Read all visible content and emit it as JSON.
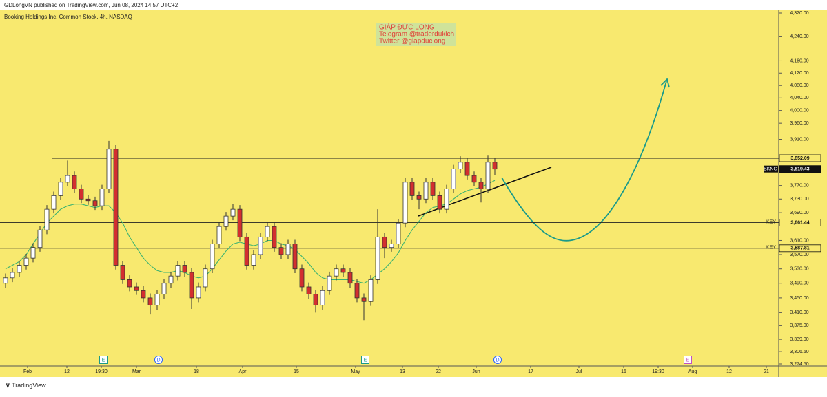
{
  "header": "GDLongVN published on TradingView.com, Jun 08, 2024 14:57 UTC+2",
  "footer": "TradingView",
  "chart_data": {
    "type": "candlestick",
    "title": "Booking Holdings Inc. Common Stock, 4h, NASDAQ",
    "watermark": [
      "GIÁP ĐỨC LONG",
      "Telegram @traderdukich",
      "Twitter @giapduclong"
    ],
    "log_scale": true,
    "grid": false,
    "up_color": "#ffffff",
    "down_color": "#d32f2f",
    "ma_color": "#3cb371",
    "ylim": [
      3274.5,
      4320
    ],
    "yticks": [
      {
        "value": 4320,
        "label": "4,320.00"
      },
      {
        "value": 4240,
        "label": "4,240.00"
      },
      {
        "value": 4160,
        "label": "4,160.00"
      },
      {
        "value": 4120,
        "label": "4,120.00"
      },
      {
        "value": 4080,
        "label": "4,080.00"
      },
      {
        "value": 4040,
        "label": "4,040.00"
      },
      {
        "value": 4000,
        "label": "4,000.00"
      },
      {
        "value": 3960,
        "label": "3,960.00"
      },
      {
        "value": 3910,
        "label": "3,910.00"
      },
      {
        "value": 3770,
        "label": "3,770.00"
      },
      {
        "value": 3730,
        "label": "3,730.00"
      },
      {
        "value": 3690,
        "label": "3,690.00"
      },
      {
        "value": 3610,
        "label": "3,610.00"
      },
      {
        "value": 3570,
        "label": "3,570.00"
      },
      {
        "value": 3530,
        "label": "3,530.00"
      },
      {
        "value": 3490,
        "label": "3,490.00"
      },
      {
        "value": 3450,
        "label": "3,450.00"
      },
      {
        "value": 3410,
        "label": "3,410.00"
      },
      {
        "value": 3375,
        "label": "3,375.00"
      },
      {
        "value": 3339,
        "label": "3,339.00"
      },
      {
        "value": 3306.5,
        "label": "3,306.50"
      },
      {
        "value": 3274.5,
        "label": "3,274.50"
      }
    ],
    "xlim": [
      -0.8,
      112.2
    ],
    "xticks": [
      {
        "value": 3.2,
        "label": "Feb"
      },
      {
        "value": 8.9,
        "label": "12"
      },
      {
        "value": 13.9,
        "label": "19:30"
      },
      {
        "value": 19,
        "label": "Mar"
      },
      {
        "value": 27.7,
        "label": "18"
      },
      {
        "value": 34.4,
        "label": "Apr"
      },
      {
        "value": 42.2,
        "label": "15"
      },
      {
        "value": 50.8,
        "label": "May"
      },
      {
        "value": 57.6,
        "label": "13"
      },
      {
        "value": 62.8,
        "label": "22"
      },
      {
        "value": 68.3,
        "label": "Jun"
      },
      {
        "value": 76.2,
        "label": "17"
      },
      {
        "value": 83.2,
        "label": "Jul"
      },
      {
        "value": 89.7,
        "label": "15"
      },
      {
        "value": 94.7,
        "label": "19:30"
      },
      {
        "value": 99.7,
        "label": "Aug"
      },
      {
        "value": 105,
        "label": "12"
      },
      {
        "value": 110.4,
        "label": "21"
      }
    ],
    "open": [
      3490,
      3505,
      3520,
      3540,
      3560,
      3590,
      3640,
      3700,
      3740,
      3780,
      3800,
      3760,
      3730,
      3725,
      3710,
      3760,
      3880,
      3540,
      3500,
      3480,
      3470,
      3450,
      3430,
      3460,
      3490,
      3510,
      3540,
      3520,
      3450,
      3480,
      3530,
      3600,
      3650,
      3680,
      3700,
      3620,
      3540,
      3570,
      3620,
      3650,
      3590,
      3570,
      3600,
      3530,
      3480,
      3460,
      3430,
      3470,
      3510,
      3530,
      3520,
      3490,
      3450,
      3440,
      3500,
      3620,
      3590,
      3600,
      3660,
      3780,
      3740,
      3730,
      3780,
      3740,
      3700,
      3760,
      3820,
      3840,
      3800,
      3780,
      3760,
      3840
    ],
    "high": [
      3517,
      3532,
      3552,
      3572,
      3602,
      3652,
      3712,
      3752,
      3792,
      3845,
      3812,
      3772,
      3742,
      3737,
      3772,
      3905,
      3892,
      3552,
      3512,
      3492,
      3482,
      3462,
      3472,
      3502,
      3522,
      3552,
      3552,
      3532,
      3492,
      3542,
      3612,
      3662,
      3692,
      3715,
      3712,
      3632,
      3582,
      3632,
      3662,
      3662,
      3602,
      3612,
      3612,
      3542,
      3492,
      3472,
      3482,
      3522,
      3542,
      3542,
      3532,
      3502,
      3462,
      3512,
      3700,
      3632,
      3612,
      3672,
      3792,
      3792,
      3752,
      3792,
      3792,
      3752,
      3772,
      3832,
      3858,
      3852,
      3812,
      3792,
      3860,
      3852
    ],
    "low": [
      3478,
      3493,
      3508,
      3528,
      3548,
      3578,
      3628,
      3688,
      3728,
      3768,
      3748,
      3718,
      3713,
      3698,
      3698,
      3748,
      3528,
      3488,
      3468,
      3458,
      3438,
      3405,
      3418,
      3448,
      3478,
      3498,
      3508,
      3420,
      3438,
      3468,
      3518,
      3588,
      3638,
      3668,
      3608,
      3528,
      3528,
      3558,
      3608,
      3578,
      3558,
      3558,
      3518,
      3468,
      3448,
      3410,
      3418,
      3458,
      3498,
      3508,
      3478,
      3438,
      3390,
      3428,
      3488,
      3560,
      3578,
      3588,
      3648,
      3728,
      3700,
      3718,
      3728,
      3688,
      3688,
      3748,
      3808,
      3788,
      3768,
      3720,
      3748,
      3800
    ],
    "close": [
      3505,
      3520,
      3540,
      3560,
      3590,
      3640,
      3700,
      3740,
      3780,
      3800,
      3760,
      3730,
      3725,
      3710,
      3760,
      3880,
      3540,
      3500,
      3480,
      3470,
      3450,
      3430,
      3460,
      3490,
      3510,
      3540,
      3520,
      3450,
      3480,
      3530,
      3600,
      3650,
      3680,
      3700,
      3620,
      3540,
      3570,
      3620,
      3650,
      3590,
      3570,
      3600,
      3530,
      3480,
      3460,
      3430,
      3470,
      3510,
      3530,
      3520,
      3490,
      3450,
      3440,
      3500,
      3620,
      3590,
      3600,
      3660,
      3780,
      3740,
      3730,
      3780,
      3740,
      3700,
      3760,
      3820,
      3840,
      3800,
      3780,
      3760,
      3840,
      3819.43
    ],
    "ma": [
      3530,
      3540,
      3550,
      3570,
      3600,
      3630,
      3660,
      3680,
      3700,
      3710,
      3715,
      3715,
      3710,
      3705,
      3710,
      3710,
      3690,
      3660,
      3620,
      3590,
      3560,
      3540,
      3525,
      3520,
      3520,
      3525,
      3520,
      3510,
      3505,
      3510,
      3530,
      3555,
      3580,
      3600,
      3605,
      3600,
      3595,
      3600,
      3610,
      3610,
      3600,
      3595,
      3585,
      3565,
      3545,
      3520,
      3505,
      3500,
      3500,
      3500,
      3500,
      3495,
      3490,
      3500,
      3515,
      3530,
      3550,
      3575,
      3610,
      3640,
      3665,
      3690,
      3705,
      3710,
      3715,
      3730,
      3745,
      3755,
      3760,
      3765,
      3775,
      3785
    ],
    "levels": [
      {
        "value": 3852.09,
        "label": "3,852.09"
      },
      {
        "name": "BKNG",
        "value": 3819.43,
        "label": "3,819.43"
      },
      {
        "name": "KEY",
        "value": 3661.44,
        "label": "3,661.44"
      },
      {
        "name": "KEY",
        "value": 3587.81,
        "label": "3,587.81"
      }
    ],
    "events": [
      {
        "label": "E",
        "x": 14.2
      },
      {
        "label": "D",
        "x": 22.2
      },
      {
        "label": "E",
        "x": 52.2
      },
      {
        "label": "D",
        "x": 71.4
      },
      {
        "label": "E",
        "x": 99
      }
    ]
  }
}
